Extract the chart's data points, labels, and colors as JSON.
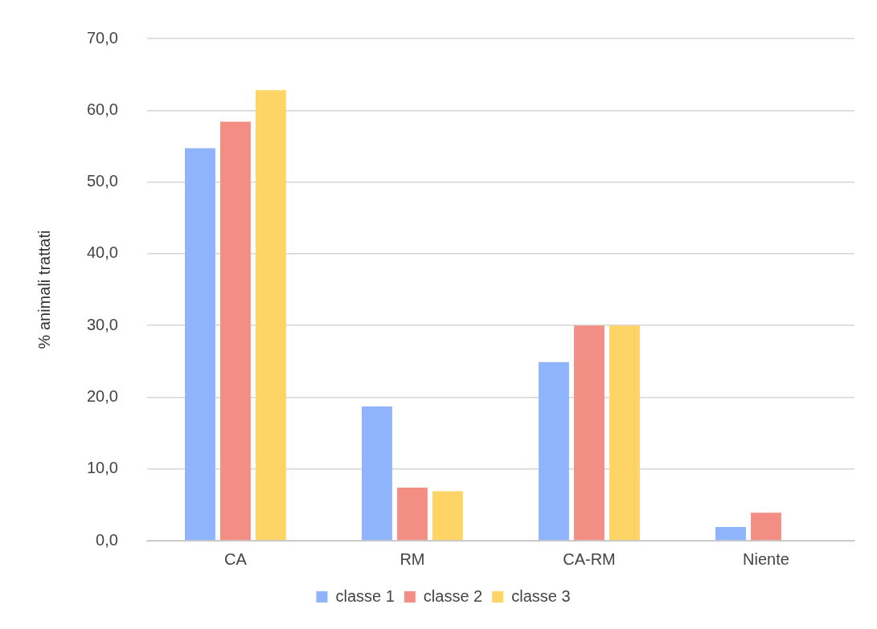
{
  "chart_data": {
    "type": "bar",
    "ylabel": "% animali trattati",
    "categories": [
      "CA",
      "RM",
      "CA-RM",
      "Niente"
    ],
    "series": [
      {
        "name": "classe 1",
        "color": "#8fb4fb",
        "values": [
          54.7,
          18.7,
          24.9,
          1.9
        ]
      },
      {
        "name": "classe 2",
        "color": "#f28e84",
        "values": [
          58.4,
          7.4,
          30.0,
          3.9
        ]
      },
      {
        "name": "classe 3",
        "color": "#fdd465",
        "values": [
          62.8,
          6.9,
          30.0,
          0
        ]
      }
    ],
    "ylim": [
      0,
      70
    ],
    "yticks": [
      {
        "value": 0,
        "label": "0,0"
      },
      {
        "value": 10,
        "label": "10,0"
      },
      {
        "value": 20,
        "label": "20,0"
      },
      {
        "value": 30,
        "label": "30,0"
      },
      {
        "value": 40,
        "label": "40,0"
      },
      {
        "value": 50,
        "label": "50,0"
      },
      {
        "value": 60,
        "label": "60,0"
      },
      {
        "value": 70,
        "label": "70,0"
      }
    ],
    "grid": "y",
    "legend": "bottom"
  }
}
